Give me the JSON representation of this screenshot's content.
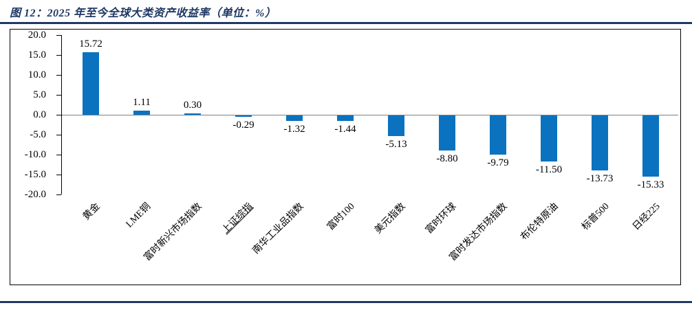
{
  "figure": {
    "title": "图 12：2025 年至今全球大类资产收益率（单位：%）",
    "accent_color": "#1f3864"
  },
  "chart_data": {
    "type": "bar",
    "title": "2025 年至今全球大类资产收益率",
    "unit": "%",
    "categories": [
      "黄金",
      "LME铜",
      "富时新兴市场指数",
      "上证综指",
      "南华工业品指数",
      "富时100",
      "美元指数",
      "富时环球",
      "富时发达市场指数",
      "布伦特原油",
      "标普500",
      "日经225"
    ],
    "values": [
      15.72,
      1.11,
      0.3,
      -0.29,
      -1.32,
      -1.44,
      -5.13,
      -8.8,
      -9.79,
      -11.5,
      -13.73,
      -15.33
    ],
    "value_labels": [
      "15.72",
      "1.11",
      "0.30",
      "-0.29",
      "-1.32",
      "-1.44",
      "-5.13",
      "-8.80",
      "-9.79",
      "-11.50",
      "-13.73",
      "-15.33"
    ],
    "underlined_categories": [
      "上证综指"
    ],
    "ylim": [
      -20,
      20
    ],
    "y_ticks": [
      20,
      15,
      10,
      5,
      0,
      -5,
      -10,
      -15,
      -20
    ],
    "y_tick_labels": [
      "20.0",
      "15.0",
      "10.0",
      "5.0",
      "0.0",
      "-5.0",
      "-10.0",
      "-15.0",
      "-20.0"
    ],
    "bar_color": "#0b72bf",
    "zero_line_color": "#7f7f7f",
    "grid": false,
    "legend": false
  }
}
